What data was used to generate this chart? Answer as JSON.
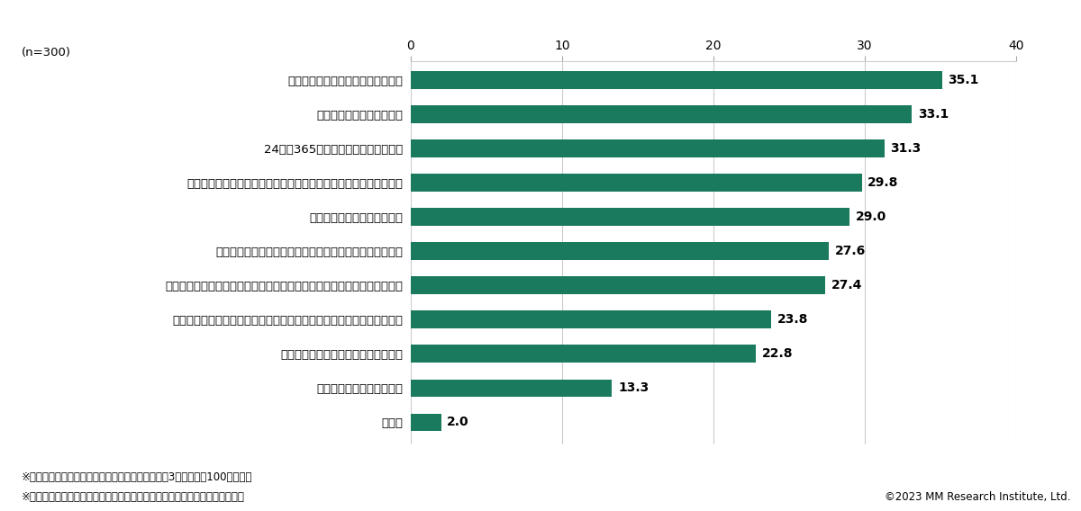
{
  "categories": [
    "レンタカーよりも安いと思ったから",
    "短時間でも利用できるから",
    "24時間365日いつでも利用できるから",
    "出かけた先や旅行先など、普段自分がいる場所以外でも使えるから",
    "すぐに出発、返却できるから",
    "自宅や職場など、普段自分がいる場所の近くで使えたから",
    "自動車保険や税金など、自家用車にかかる維持費を気にしなくていいから",
    "自家用車は高くて買えない、もしくは買う予定がないが車が必要だから",
    "予約や決済などの手続きが簡単だから",
    "車両を所有していないから",
    "その他"
  ],
  "values": [
    35.1,
    33.1,
    31.3,
    29.8,
    29.0,
    27.6,
    27.4,
    23.8,
    22.8,
    13.3,
    2.0
  ],
  "bar_color": "#1a7a5e",
  "xlim": [
    0,
    40
  ],
  "xticks": [
    0,
    10,
    20,
    30,
    40
  ],
  "xlabel_unit": "(%)",
  "n_label": "(n=300)",
  "note1": "※カーシェアを「利用したことがある」と回答した3都府県の各100人が対象",
  "note2": "※算出に際し、サンプル数を人口比率に合わせるウェイトバックを行っている",
  "copyright": "©2023 MM Research Institute, Ltd.",
  "bar_height": 0.52,
  "background_color": "#ffffff",
  "label_fontsize": 9.5,
  "value_fontsize": 10,
  "tick_fontsize": 10,
  "note_fontsize": 8.5
}
